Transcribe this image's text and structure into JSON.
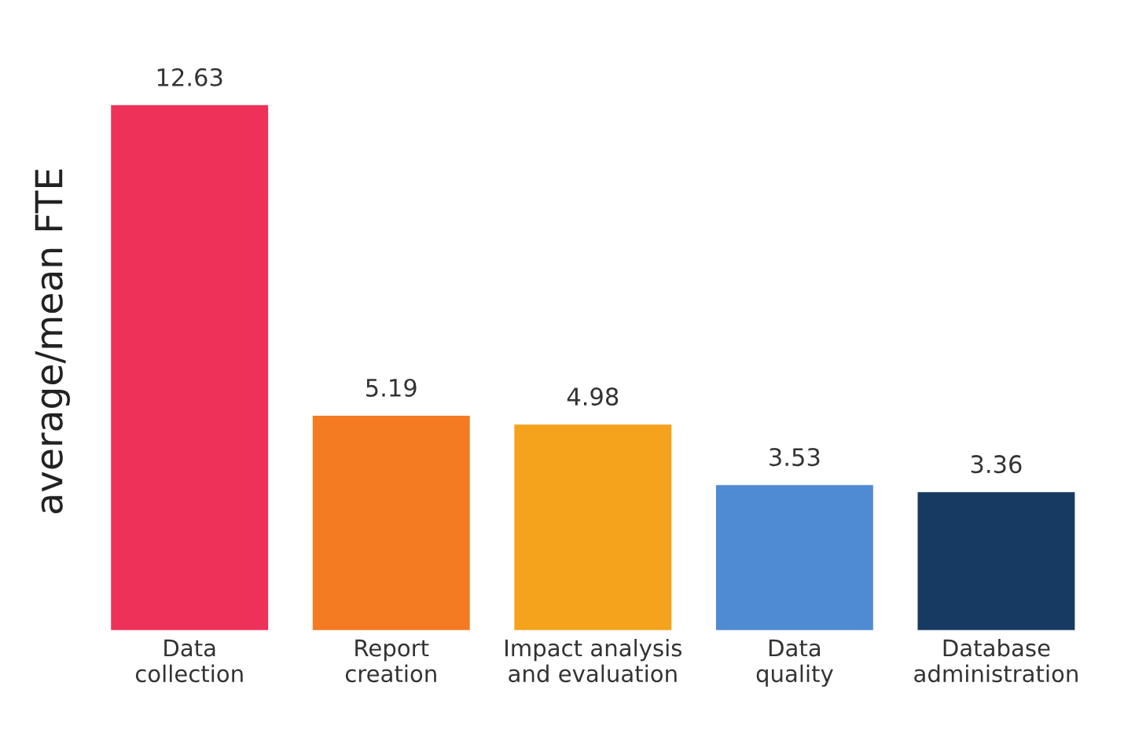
{
  "chart_data": {
    "type": "bar",
    "ylabel": "average/mean FTE",
    "categories": [
      "Data\ncollection",
      "Report\ncreation",
      "Impact analysis\nand evaluation",
      "Data\nquality",
      "Database\nadministration"
    ],
    "values": [
      12.63,
      5.19,
      4.98,
      3.53,
      3.36
    ],
    "colors": [
      "#ee3158",
      "#f47b22",
      "#f5a21c",
      "#4f8bd3",
      "#173a63"
    ],
    "data_labels": true,
    "tick_labels": "x",
    "grid": false,
    "legend": false
  }
}
